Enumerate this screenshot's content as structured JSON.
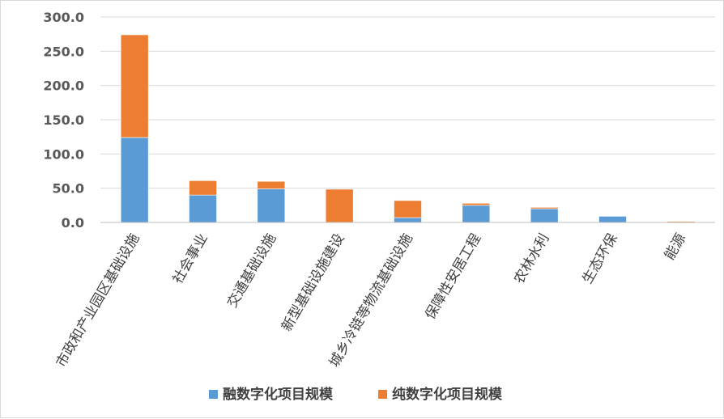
{
  "chart_data": {
    "type": "bar",
    "stacked": true,
    "categories": [
      "市政和产业园区基础设施",
      "社会事业",
      "交通基础设施",
      "新型基础设施建设",
      "城乡冷链等物流基础设施",
      "保障性安居工程",
      "农林水利",
      "生态环保",
      "能源"
    ],
    "series": [
      {
        "name": "融数字化项目规模",
        "color": "#5b9bd5",
        "values": [
          124,
          40,
          49,
          0,
          7,
          25,
          20,
          9,
          0
        ]
      },
      {
        "name": "纯数字化项目规模",
        "color": "#ed7d31",
        "values": [
          150,
          21,
          11,
          48.5,
          25,
          3,
          2,
          0,
          1.5
        ]
      }
    ],
    "yticks": [
      "0.0",
      "50.0",
      "100.0",
      "150.0",
      "200.0",
      "250.0",
      "300.0"
    ],
    "ylim": [
      0,
      300
    ],
    "grid": true,
    "legend": "bottom",
    "title": "",
    "xlabel": "",
    "ylabel": ""
  }
}
